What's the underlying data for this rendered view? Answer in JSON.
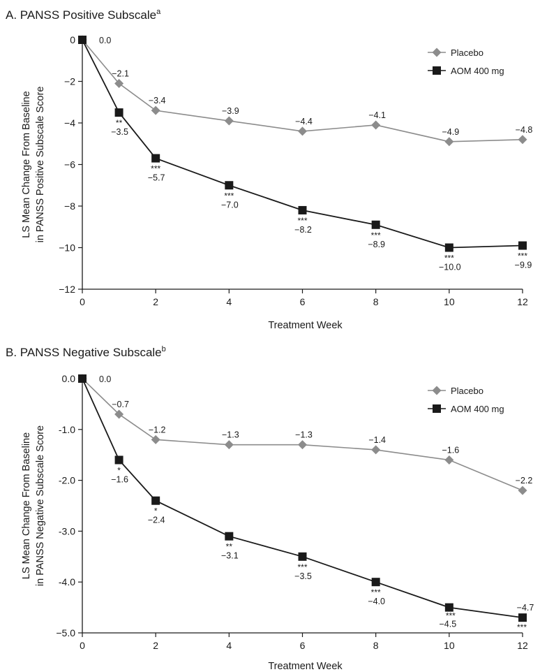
{
  "chart_data": [
    {
      "type": "line",
      "title": "A. PANSS Positive Subscale",
      "title_superscript": "a",
      "xlabel": "Treatment Week",
      "ylabel_line1": "LS Mean Change From Baseline",
      "ylabel_line2": "in PANSS Positive Subscale Score",
      "x": [
        0,
        1,
        2,
        4,
        6,
        8,
        10,
        12
      ],
      "xticks": [
        "0",
        "2",
        "4",
        "6",
        "8",
        "10",
        "12"
      ],
      "xlim": [
        0,
        12
      ],
      "ylim": [
        -12,
        0
      ],
      "yticks": [
        "0",
        "−2",
        "−4",
        "−6",
        "−8",
        "−10",
        "−12"
      ],
      "legend_position": "top-right",
      "series": [
        {
          "name": "Placebo",
          "marker": "diamond",
          "color": "#8c8c8c",
          "values": [
            0.0,
            -2.1,
            -3.4,
            -3.9,
            -4.4,
            -4.1,
            -4.9,
            -4.8
          ],
          "labels": [
            "0.0",
            "−2.1",
            "−3.4",
            "−3.9",
            "−4.4",
            "−4.1",
            "−4.9",
            "−4.8"
          ]
        },
        {
          "name": "AOM 400 mg",
          "marker": "square",
          "color": "#1a1a1a",
          "values": [
            0.0,
            -3.5,
            -5.7,
            -7.0,
            -8.2,
            -8.9,
            -10.0,
            -9.9
          ],
          "labels": [
            "0.0",
            "−3.5",
            "−5.7",
            "−7.0",
            "−8.2",
            "−8.9",
            "−10.0",
            "−9.9"
          ],
          "significance": [
            "",
            "**",
            "***",
            "***",
            "***",
            "***",
            "***",
            "***"
          ]
        }
      ]
    },
    {
      "type": "line",
      "title": "B. PANSS Negative Subscale",
      "title_superscript": "b",
      "xlabel": "Treatment Week",
      "ylabel_line1": "LS Mean Change From Baseline",
      "ylabel_line2": "in PANSS Negative Subscale Score",
      "x": [
        0,
        1,
        2,
        4,
        6,
        8,
        10,
        12
      ],
      "xticks": [
        "0",
        "2",
        "4",
        "6",
        "8",
        "10",
        "12"
      ],
      "xlim": [
        0,
        12
      ],
      "ylim": [
        -5,
        0
      ],
      "yticks": [
        "0.0",
        "-1.0",
        "-2.0",
        "-3.0",
        "-4.0",
        "−5.0"
      ],
      "legend_position": "top-right",
      "series": [
        {
          "name": "Placebo",
          "marker": "diamond",
          "color": "#8c8c8c",
          "values": [
            0.0,
            -0.7,
            -1.2,
            -1.3,
            -1.3,
            -1.4,
            -1.6,
            -2.2
          ],
          "labels": [
            "0.0",
            "−0.7",
            "−1.2",
            "−1.3",
            "−1.3",
            "−1.4",
            "−1.6",
            "−2.2"
          ]
        },
        {
          "name": "AOM 400 mg",
          "marker": "square",
          "color": "#1a1a1a",
          "values": [
            0.0,
            -1.6,
            -2.4,
            -3.1,
            -3.5,
            -4.0,
            -4.5,
            -4.7
          ],
          "labels": [
            "0.0",
            "−1.6",
            "−2.4",
            "−3.1",
            "−3.5",
            "−4.0",
            "−4.5",
            "−4.7"
          ],
          "significance": [
            "",
            "*",
            "*",
            "**",
            "***",
            "***",
            "***",
            "***"
          ]
        }
      ]
    }
  ]
}
